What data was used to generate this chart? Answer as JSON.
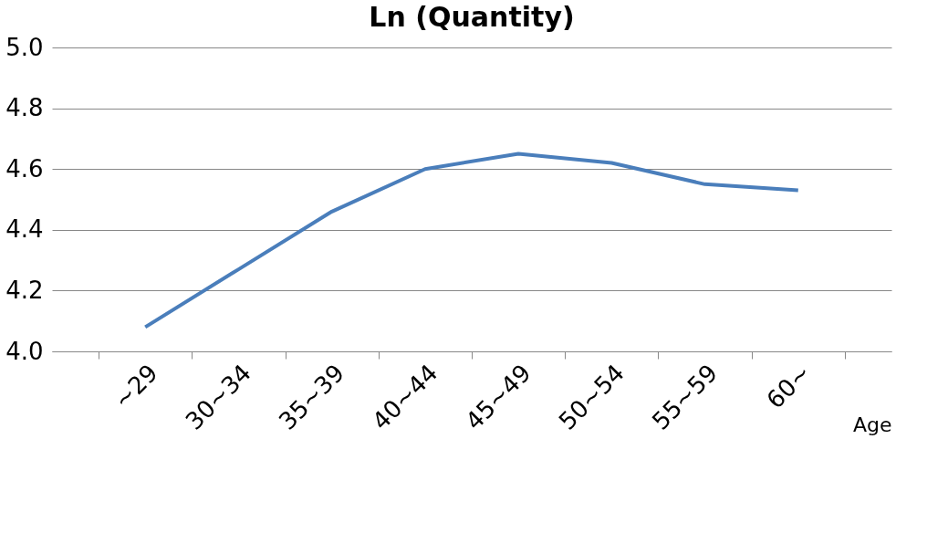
{
  "chart_data": {
    "type": "line",
    "title": "Ln (Quantity)",
    "xlabel": "Age",
    "categories": [
      "~29",
      "30~34",
      "35~39",
      "40~44",
      "45~49",
      "50~54",
      "55~59",
      "60~"
    ],
    "series": [
      {
        "color": "#4a7ebb",
        "values": [
          4.08,
          4.27,
          4.46,
          4.6,
          4.65,
          4.62,
          4.55,
          4.53
        ]
      }
    ],
    "ylim": [
      4.0,
      5.0
    ],
    "yticks": [
      {
        "value": 4,
        "label": "4.0"
      },
      4.2,
      4.4,
      4.6,
      4.8,
      {
        "value": 5,
        "label": "5.0"
      }
    ],
    "grid": "y",
    "legend": false,
    "marker": "none",
    "line_style": "solid"
  }
}
